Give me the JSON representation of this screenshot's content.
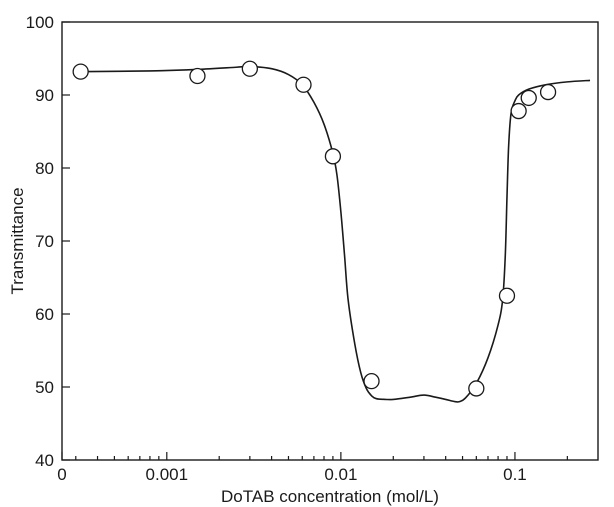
{
  "chart_data": {
    "type": "scatter",
    "xlabel": "DoTAB concentration (mol/L)",
    "ylabel": "Transmittance",
    "x_scale": "log",
    "xlim": [
      0.00025,
      0.3
    ],
    "ylim": [
      40,
      100
    ],
    "x_ticks": [
      {
        "value": 0.00025,
        "label": "0"
      },
      {
        "value": 0.001,
        "label": "0.001"
      },
      {
        "value": 0.01,
        "label": "0.01"
      },
      {
        "value": 0.1,
        "label": "0.1"
      }
    ],
    "y_ticks": [
      40,
      50,
      60,
      70,
      80,
      90,
      100
    ],
    "grid": false,
    "series": [
      {
        "marker": "open-circle",
        "x": [
          0.00032,
          0.0015,
          0.003,
          0.0061,
          0.009,
          0.015,
          0.06,
          0.09,
          0.105,
          0.12,
          0.155
        ],
        "y": [
          93.2,
          92.6,
          93.6,
          91.4,
          81.6,
          50.8,
          49.8,
          62.5,
          87.8,
          89.6,
          90.4
        ]
      }
    ],
    "fit_curve": {
      "x": [
        0.0003,
        0.0008,
        0.0015,
        0.0025,
        0.003,
        0.004,
        0.005,
        0.006,
        0.007,
        0.008,
        0.009,
        0.0095,
        0.01,
        0.0105,
        0.011,
        0.012,
        0.013,
        0.014,
        0.015,
        0.016,
        0.018,
        0.02,
        0.025,
        0.03,
        0.035,
        0.04,
        0.045,
        0.048,
        0.052,
        0.06,
        0.07,
        0.08,
        0.085,
        0.088,
        0.09,
        0.092,
        0.095,
        0.1,
        0.105,
        0.12,
        0.15,
        0.2,
        0.27
      ],
      "y": [
        93.2,
        93.3,
        93.5,
        93.8,
        93.9,
        93.6,
        92.8,
        91.4,
        89.0,
        86.0,
        82.0,
        79.0,
        74.0,
        68.0,
        62.0,
        56.0,
        52.0,
        49.8,
        48.8,
        48.4,
        48.3,
        48.3,
        48.6,
        48.9,
        48.6,
        48.3,
        48.0,
        48.0,
        48.5,
        50.5,
        54.0,
        58.5,
        62.0,
        68.0,
        76.0,
        83.0,
        87.5,
        89.2,
        90.0,
        90.8,
        91.4,
        91.8,
        92.0
      ]
    }
  }
}
